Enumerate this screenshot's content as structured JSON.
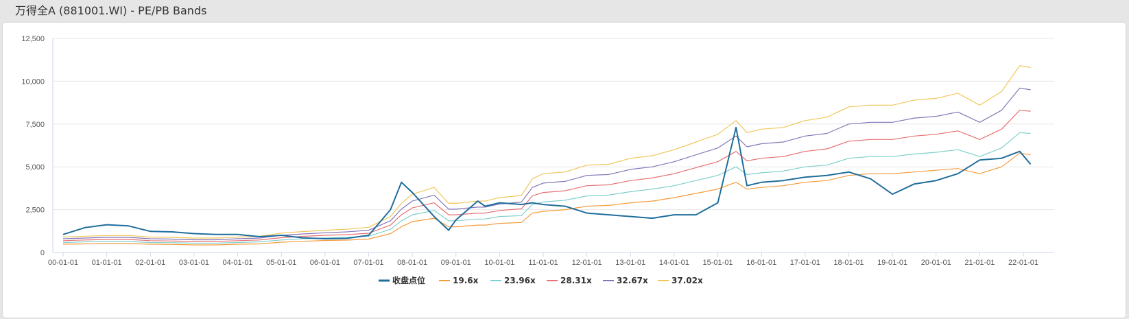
{
  "title": "万得全A (881001.WI) - PE/PB Bands",
  "chart_data": {
    "type": "line",
    "title": "万得全A (881001.WI) - PE/PB Bands",
    "xlabel": "",
    "ylabel": "",
    "ylim": [
      0,
      12500
    ],
    "yticks": [
      "0",
      "2,500",
      "5,000",
      "7,500",
      "10,000",
      "12,500"
    ],
    "xticks": [
      "00-01-01",
      "01-01-01",
      "02-01-01",
      "03-01-01",
      "04-01-01",
      "05-01-01",
      "06-01-01",
      "07-01-01",
      "08-01-01",
      "09-01-01",
      "10-01-01",
      "11-01-01",
      "12-01-01",
      "13-01-01",
      "14-01-01",
      "15-01-01",
      "16-01-01",
      "17-01-01",
      "18-01-01",
      "19-01-01",
      "20-01-01",
      "21-01-01",
      "22-01-01"
    ],
    "grid": true,
    "legend_position": "bottom",
    "x": [
      "2000-01",
      "2000-07",
      "2001-01",
      "2001-07",
      "2002-01",
      "2002-07",
      "2003-01",
      "2003-07",
      "2004-01",
      "2004-07",
      "2005-01",
      "2005-07",
      "2006-01",
      "2006-07",
      "2007-01",
      "2007-07",
      "2007-10",
      "2008-01",
      "2008-07",
      "2008-11",
      "2009-01",
      "2009-07",
      "2009-09",
      "2010-01",
      "2010-07",
      "2010-10",
      "2011-01",
      "2011-07",
      "2012-01",
      "2012-07",
      "2013-01",
      "2013-07",
      "2014-01",
      "2014-07",
      "2015-01",
      "2015-06",
      "2015-09",
      "2016-01",
      "2016-07",
      "2017-01",
      "2017-07",
      "2018-01",
      "2018-07",
      "2019-01",
      "2019-07",
      "2020-01",
      "2020-07",
      "2021-01",
      "2021-07",
      "2021-12",
      "2022-03"
    ],
    "series": [
      {
        "name": "收盘点位",
        "color": "#1f6d9c",
        "values": [
          1050,
          1450,
          1620,
          1550,
          1230,
          1200,
          1100,
          1050,
          1050,
          920,
          1000,
          850,
          800,
          820,
          1000,
          2500,
          4100,
          3500,
          2100,
          1300,
          1900,
          3000,
          2700,
          2900,
          2800,
          2900,
          2800,
          2700,
          2300,
          2200,
          2100,
          2000,
          2200,
          2200,
          2900,
          7300,
          3900,
          4100,
          4200,
          4400,
          4500,
          4700,
          4300,
          3400,
          4000,
          4200,
          4600,
          5400,
          5500,
          5900,
          5150
        ]
      },
      {
        "name": "19.6x",
        "color": "#f59b3a",
        "values": [
          480,
          500,
          520,
          520,
          480,
          470,
          440,
          440,
          480,
          500,
          600,
          650,
          700,
          720,
          780,
          1100,
          1500,
          1800,
          2000,
          1500,
          1500,
          1600,
          1600,
          1700,
          1750,
          2300,
          2400,
          2500,
          2700,
          2750,
          2900,
          3000,
          3200,
          3450,
          3700,
          4100,
          3700,
          3800,
          3900,
          4100,
          4200,
          4500,
          4600,
          4600,
          4700,
          4800,
          4900,
          4600,
          5000,
          5800,
          5700
        ]
      },
      {
        "name": "23.96x",
        "color": "#7fd0cc",
        "values": [
          580,
          620,
          640,
          640,
          580,
          570,
          540,
          540,
          580,
          620,
          730,
          800,
          850,
          880,
          950,
          1350,
          1850,
          2200,
          2450,
          1850,
          1850,
          1950,
          1950,
          2100,
          2150,
          2800,
          2950,
          3050,
          3300,
          3350,
          3550,
          3700,
          3900,
          4200,
          4500,
          5000,
          4550,
          4650,
          4750,
          5000,
          5100,
          5500,
          5600,
          5600,
          5750,
          5850,
          6000,
          5600,
          6100,
          7000,
          6950
        ]
      },
      {
        "name": "28.31x",
        "color": "#e86f73",
        "values": [
          690,
          730,
          760,
          760,
          690,
          670,
          640,
          640,
          690,
          730,
          860,
          940,
          1000,
          1040,
          1120,
          1600,
          2200,
          2600,
          2900,
          2200,
          2200,
          2300,
          2300,
          2450,
          2550,
          3300,
          3500,
          3600,
          3900,
          3950,
          4200,
          4350,
          4600,
          4950,
          5300,
          5900,
          5350,
          5500,
          5600,
          5900,
          6050,
          6500,
          6600,
          6600,
          6800,
          6900,
          7100,
          6600,
          7200,
          8300,
          8250
        ]
      },
      {
        "name": "32.67x",
        "color": "#8676b8",
        "values": [
          800,
          840,
          880,
          880,
          800,
          780,
          740,
          740,
          800,
          840,
          1000,
          1080,
          1150,
          1200,
          1300,
          1850,
          2530,
          3000,
          3350,
          2530,
          2530,
          2650,
          2650,
          2830,
          2940,
          3800,
          4050,
          4150,
          4500,
          4550,
          4850,
          5000,
          5300,
          5700,
          6100,
          6800,
          6170,
          6350,
          6450,
          6800,
          6950,
          7500,
          7600,
          7600,
          7850,
          7950,
          8200,
          7600,
          8300,
          9600,
          9500
        ]
      },
      {
        "name": "37.02x",
        "color": "#f1c65a",
        "values": [
          900,
          950,
          990,
          990,
          900,
          880,
          840,
          840,
          900,
          950,
          1130,
          1220,
          1300,
          1360,
          1470,
          2100,
          2870,
          3400,
          3800,
          2870,
          2870,
          3000,
          3000,
          3200,
          3330,
          4300,
          4600,
          4700,
          5100,
          5150,
          5500,
          5650,
          6000,
          6450,
          6900,
          7700,
          7000,
          7200,
          7300,
          7700,
          7900,
          8500,
          8600,
          8600,
          8900,
          9000,
          9300,
          8600,
          9400,
          10900,
          10800
        ]
      }
    ]
  }
}
